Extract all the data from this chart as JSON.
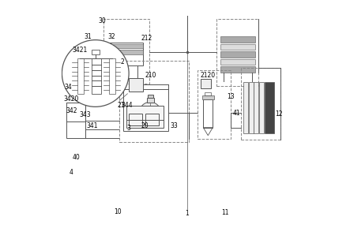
{
  "bg_color": "#ffffff",
  "line_color": "#555555",
  "dashed_color": "#888888",
  "figsize": [
    4.43,
    2.89
  ],
  "dpi": 100
}
